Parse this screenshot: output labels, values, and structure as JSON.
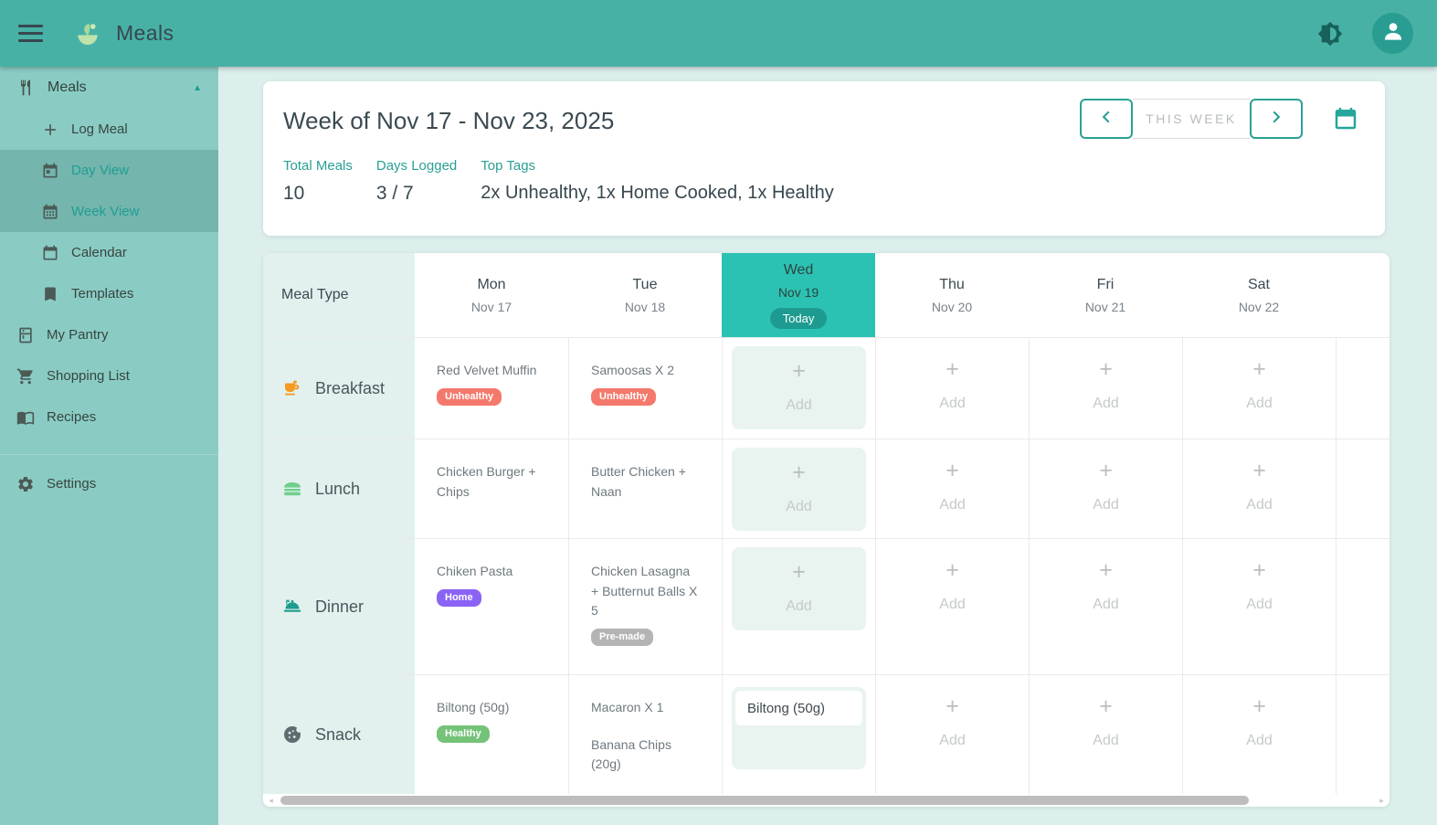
{
  "app_bar": {
    "title": "Meals",
    "menu_icon": "hamburger-icon",
    "logo_icon": "sprout-logo-icon",
    "theme_icon": "brightness-icon",
    "avatar_icon": "person-icon"
  },
  "sidebar": {
    "section_label": "Meals",
    "section_icon": "fork-knife-icon",
    "collapse_icon": "chevron-up-icon",
    "collapse_glyph": "▲",
    "items": [
      {
        "label": "Log Meal",
        "icon": "plus-icon",
        "indent": true,
        "active": false
      },
      {
        "label": "Day View",
        "icon": "calendar-day-icon",
        "indent": true,
        "active": true
      },
      {
        "label": "Week View",
        "icon": "calendar-week-icon",
        "indent": true,
        "active": true
      },
      {
        "label": "Calendar",
        "icon": "calendar-icon",
        "indent": true,
        "active": false
      },
      {
        "label": "Templates",
        "icon": "bookmark-icon",
        "indent": true,
        "active": false
      },
      {
        "label": "My Pantry",
        "icon": "pantry-icon",
        "indent": false,
        "active": false
      },
      {
        "label": "Shopping List",
        "icon": "cart-icon",
        "indent": false,
        "active": false
      },
      {
        "label": "Recipes",
        "icon": "book-icon",
        "indent": false,
        "active": false
      }
    ],
    "footer_items": [
      {
        "label": "Settings",
        "icon": "gear-icon",
        "indent": false,
        "active": false
      }
    ]
  },
  "week_header": {
    "title": "Week of Nov 17 - Nov 23, 2025",
    "nav": {
      "prev_icon": "chevron-left-icon",
      "label": "THIS WEEK",
      "next_icon": "chevron-right-icon",
      "calendar_icon": "calendar-outline-icon"
    },
    "stats": [
      {
        "label": "Total Meals",
        "value": "10"
      },
      {
        "label": "Days Logged",
        "value": "3 / 7"
      },
      {
        "label": "Top Tags",
        "value": "2x Unhealthy, 1x Home Cooked, 1x Healthy"
      }
    ]
  },
  "planner": {
    "corner_label": "Meal Type",
    "add_label": "Add",
    "today_label": "Today",
    "today_index": 2,
    "days": [
      {
        "name": "Mon",
        "date": "Nov 17"
      },
      {
        "name": "Tue",
        "date": "Nov 18"
      },
      {
        "name": "Wed",
        "date": "Nov 19"
      },
      {
        "name": "Thu",
        "date": "Nov 20"
      },
      {
        "name": "Fri",
        "date": "Nov 21"
      },
      {
        "name": "Sat",
        "date": "Nov 22"
      }
    ],
    "rows": [
      {
        "type": "Breakfast",
        "icon": "coffee-cup-icon",
        "cells": [
          {
            "meals": [
              {
                "name": "Red Velvet Muffin",
                "tag": "Unhealthy"
              }
            ]
          },
          {
            "meals": [
              {
                "name": "Samoosas X 2",
                "tag": "Unhealthy"
              }
            ]
          },
          {
            "add": true
          },
          {
            "add": true
          },
          {
            "add": true
          },
          {
            "add": true
          }
        ]
      },
      {
        "type": "Lunch",
        "icon": "burger-icon",
        "cells": [
          {
            "meals": [
              {
                "name": "Chicken Burger + Chips"
              }
            ]
          },
          {
            "meals": [
              {
                "name": "Butter Chicken + Naan"
              }
            ]
          },
          {
            "add": true
          },
          {
            "add": true
          },
          {
            "add": true
          },
          {
            "add": true
          }
        ]
      },
      {
        "type": "Dinner",
        "icon": "cloche-icon",
        "cells": [
          {
            "meals": [
              {
                "name": "Chiken Pasta",
                "tag": "Home"
              }
            ]
          },
          {
            "meals": [
              {
                "name": "Chicken Lasagna + Butternut Balls X 5",
                "tag": "Pre-made"
              }
            ]
          },
          {
            "add": true
          },
          {
            "add": true
          },
          {
            "add": true
          },
          {
            "add": true
          }
        ]
      },
      {
        "type": "Snack",
        "icon": "cookie-icon",
        "cells": [
          {
            "meals": [
              {
                "name": "Biltong (50g)",
                "tag": "Healthy"
              }
            ]
          },
          {
            "meals": [
              {
                "name": "Macaron X 1"
              },
              {
                "name": "Banana Chips (20g)"
              }
            ]
          },
          {
            "meals": [
              {
                "name": "Biltong (50g)"
              }
            ]
          },
          {
            "add": true
          },
          {
            "add": true
          },
          {
            "add": true
          }
        ]
      }
    ]
  },
  "tags": {
    "Unhealthy": "#f4796c",
    "Home": "#8a63f5",
    "Pre-made": "#b4b4b4",
    "Healthy": "#74c378"
  },
  "colors": {
    "top_bar": "#48b1a6",
    "sidebar": "#8accc4",
    "accent": "#26a69a",
    "today_header": "#2cc2b3",
    "today_pill": "#1d9b90",
    "page_bg": "#ddefec"
  },
  "scrollbar": {
    "left_glyph": "◂",
    "right_glyph": "▸"
  }
}
